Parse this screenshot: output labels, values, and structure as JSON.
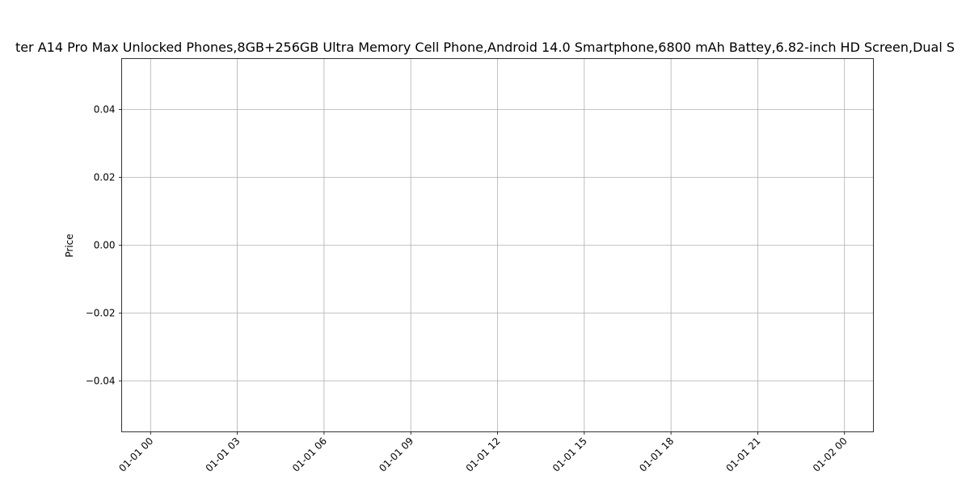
{
  "chart_data": {
    "type": "line",
    "title": "ter A14 Pro Max Unlocked Phones,8GB+256GB Ultra Memory Cell Phone,Android 14.0 Smartphone,6800 mAh Battey,6.82-inch HD Screen,Dual S",
    "xlabel": "",
    "ylabel": "Price",
    "x_axis": {
      "scale": "time",
      "range": [
        "01-01 00 (start, minus 1 hour)",
        "01-02 00 (end, plus 1 hour)"
      ],
      "ticks": [
        "01-01 00",
        "01-01 03",
        "01-01 06",
        "01-01 09",
        "01-01 12",
        "01-01 15",
        "01-01 18",
        "01-01 21",
        "01-02 00"
      ],
      "tick_rotation_deg": 45
    },
    "y_axis": {
      "ylim": [
        -0.055,
        0.055
      ],
      "ticks": [
        0.04,
        0.02,
        0.0,
        -0.02,
        -0.04
      ],
      "tick_labels": [
        "0.04",
        "0.02",
        "0.00",
        "−0.02",
        "−0.04"
      ]
    },
    "grid": true,
    "series": [
      {
        "values": []
      }
    ]
  },
  "colors": {
    "grid": "#b0b0b0",
    "axes": "#000000",
    "background": "#ffffff"
  }
}
